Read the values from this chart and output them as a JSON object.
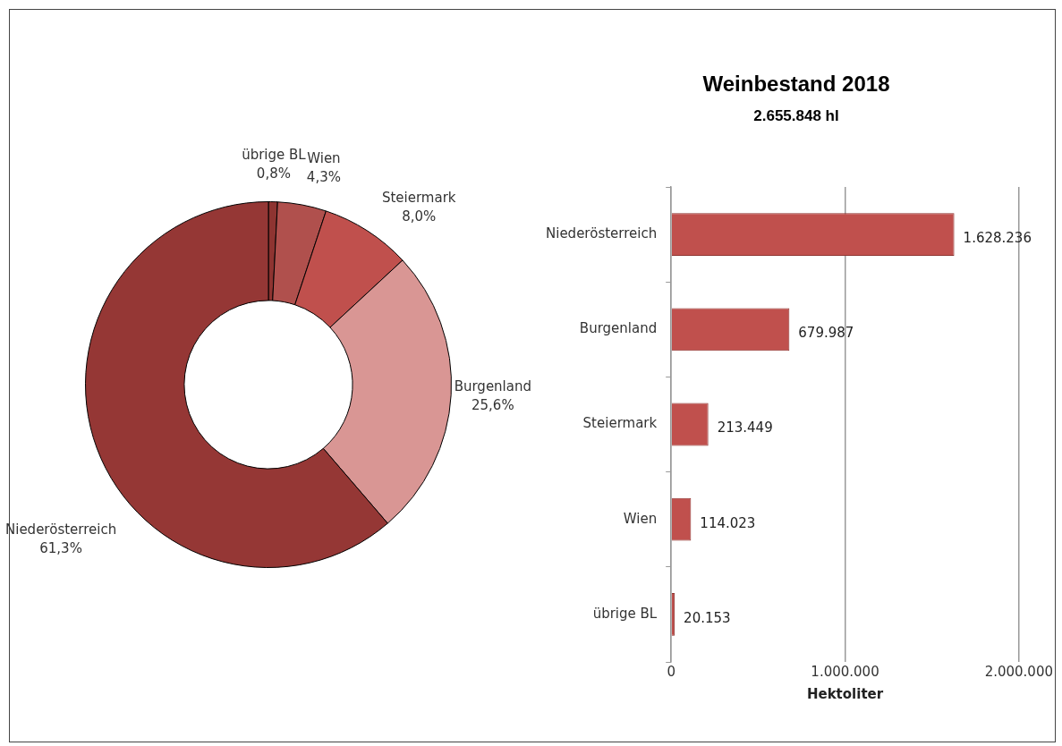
{
  "chart_data": [
    {
      "type": "donut",
      "categories": [
        "übrige BL",
        "Wien",
        "Steiermark",
        "Burgenland",
        "Niederösterreich"
      ],
      "values": [
        0.8,
        4.3,
        8.0,
        25.6,
        61.3
      ],
      "colors": [
        "#8e3431",
        "#b0504d",
        "#c0504d",
        "#d99694",
        "#953735"
      ],
      "value_labels": [
        "0,8%",
        "4,3%",
        "8,0%",
        "25,6%",
        "61,3%"
      ]
    },
    {
      "type": "bar",
      "title": "Weinbestand 2018",
      "subtitle": "2.655.848 hl",
      "orientation": "horizontal",
      "categories": [
        "Niederösterreich",
        "Burgenland",
        "Steiermark",
        "Wien",
        "übrige BL"
      ],
      "values": [
        1628236,
        679987,
        213449,
        114023,
        20153
      ],
      "color": "#c0504d",
      "value_labels": [
        "1.628.236",
        "679.987",
        "213.449",
        "114.023",
        "20.153"
      ],
      "xlim": [
        0,
        2000000
      ],
      "xticks": [
        {
          "value": 0,
          "label": "0"
        },
        {
          "value": 1000000,
          "label": "1.000.000"
        },
        {
          "value": 2000000,
          "label": "2.000.000"
        }
      ],
      "xlabel": "Hektoliter",
      "grid": "x"
    }
  ]
}
